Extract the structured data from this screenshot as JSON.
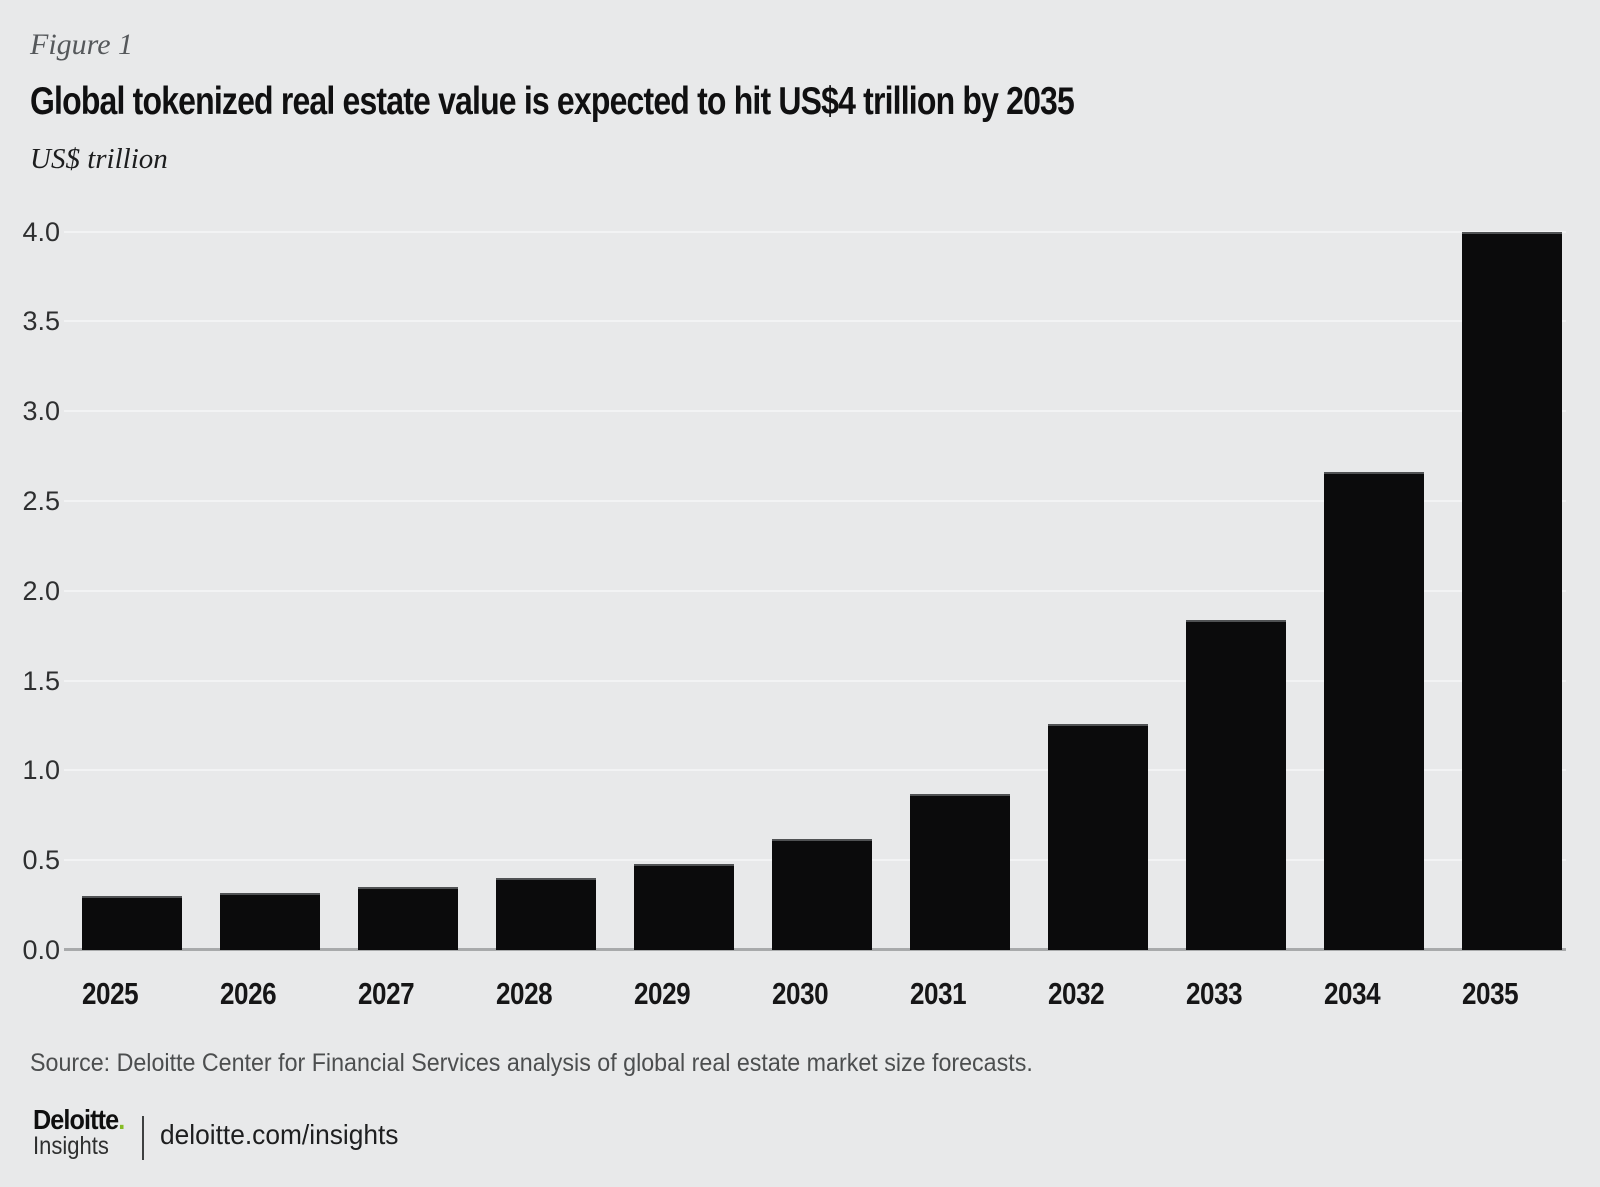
{
  "figure_label": "Figure 1",
  "title": "Global tokenized real estate value is expected to hit US$4 trillion by 2035",
  "unit_label": "US$ trillion",
  "source": "Source: Deloitte Center for Financial Services analysis of global real estate market size forecasts.",
  "footer": {
    "brand": "Deloitte",
    "brand_dot": ".",
    "brand_sub": "Insights",
    "link": "deloitte.com/insights"
  },
  "colors": {
    "background": "#e8e9ea",
    "bar": "#0b0b0c",
    "axis_line": "#a8aaab",
    "gridline": "#f2f3f4",
    "deloitte_green": "#86bc25"
  },
  "chart_data": {
    "type": "bar",
    "title": "Global tokenized real estate value is expected to hit US$4 trillion by 2035",
    "ylabel": "US$ trillion",
    "xlabel": "",
    "categories": [
      "2025",
      "2026",
      "2027",
      "2028",
      "2029",
      "2030",
      "2031",
      "2032",
      "2033",
      "2034",
      "2035"
    ],
    "values": [
      0.3,
      0.32,
      0.35,
      0.4,
      0.48,
      0.62,
      0.87,
      1.26,
      1.84,
      2.66,
      4.0
    ],
    "ylim": [
      0.0,
      4.0
    ],
    "yticks": [
      "0.0",
      "0.5",
      "1.0",
      "1.5",
      "2.0",
      "2.5",
      "3.0",
      "3.5",
      "4.0"
    ],
    "grid": "horizontal",
    "legend": "none"
  }
}
